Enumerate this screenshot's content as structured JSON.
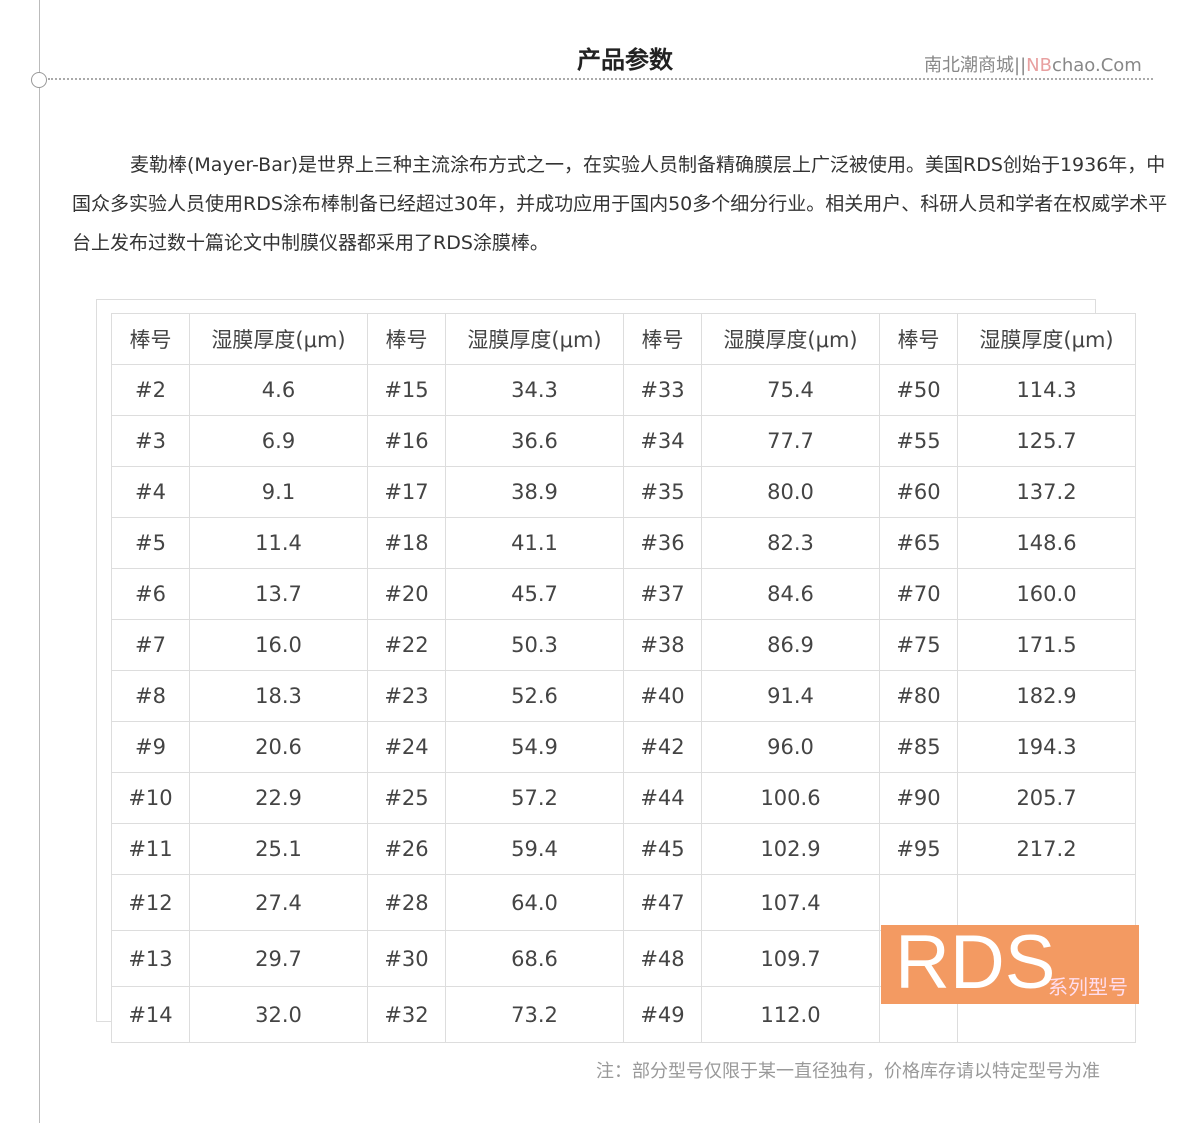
{
  "header": {
    "title": "产品参数",
    "brand_cn": "南北潮商城",
    "brand_sep": "||",
    "brand_nb": "NB",
    "brand_rest": "chao.Com"
  },
  "intro": "麦勒棒(Mayer-Bar)是世界上三种主流涂布方式之一，在实验人员制备精确膜层上广泛被使用。美国RDS创始于1936年，中国众多实验人员使用RDS涂布棒制备已经超过30年，并成功应用于国内50多个细分行业。相关用户、科研人员和学者在权威学术平台上发布过数十篇论文中制膜仪器都采用了RDS涂膜棒。",
  "table": {
    "headers": [
      "棒号",
      "湿膜厚度(μm)",
      "棒号",
      "湿膜厚度(μm)",
      "棒号",
      "湿膜厚度(μm)",
      "棒号",
      "湿膜厚度(μm)"
    ],
    "rows": [
      [
        "#2",
        "4.6",
        "#15",
        "34.3",
        "#33",
        "75.4",
        "#50",
        "114.3"
      ],
      [
        "#3",
        "6.9",
        "#16",
        "36.6",
        "#34",
        "77.7",
        "#55",
        "125.7"
      ],
      [
        "#4",
        "9.1",
        "#17",
        "38.9",
        "#35",
        "80.0",
        "#60",
        "137.2"
      ],
      [
        "#5",
        "11.4",
        "#18",
        "41.1",
        "#36",
        "82.3",
        "#65",
        "148.6"
      ],
      [
        "#6",
        "13.7",
        "#20",
        "45.7",
        "#37",
        "84.6",
        "#70",
        "160.0"
      ],
      [
        "#7",
        "16.0",
        "#22",
        "50.3",
        "#38",
        "86.9",
        "#75",
        "171.5"
      ],
      [
        "#8",
        "18.3",
        "#23",
        "52.6",
        "#40",
        "91.4",
        "#80",
        "182.9"
      ],
      [
        "#9",
        "20.6",
        "#24",
        "54.9",
        "#42",
        "96.0",
        "#85",
        "194.3"
      ],
      [
        "#10",
        "22.9",
        "#25",
        "57.2",
        "#44",
        "100.6",
        "#90",
        "205.7"
      ],
      [
        "#11",
        "25.1",
        "#26",
        "59.4",
        "#45",
        "102.9",
        "#95",
        "217.2"
      ],
      [
        "#12",
        "27.4",
        "#28",
        "64.0",
        "#47",
        "107.4",
        "",
        ""
      ],
      [
        "#13",
        "29.7",
        "#30",
        "68.6",
        "#48",
        "109.7",
        "",
        ""
      ],
      [
        "#14",
        "32.0",
        "#32",
        "73.2",
        "#49",
        "112.0",
        "",
        ""
      ]
    ]
  },
  "badge": {
    "big": "RDS",
    "small": "系列型号",
    "color": "#f39a62"
  },
  "note": "注：部分型号仅限于某一直径独有，价格库存请以特定型号为准"
}
